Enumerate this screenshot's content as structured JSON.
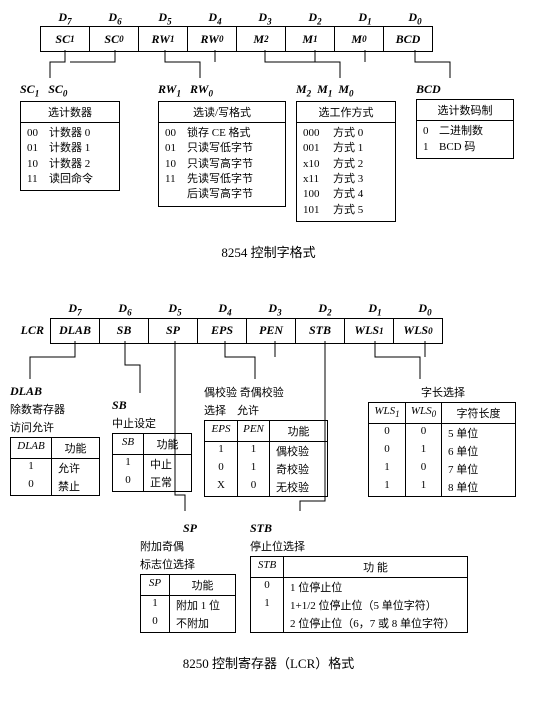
{
  "diagram1": {
    "bits": [
      "D",
      "D",
      "D",
      "D",
      "D",
      "D",
      "D",
      "D"
    ],
    "bit_subs": [
      "7",
      "6",
      "5",
      "4",
      "3",
      "2",
      "1",
      "0"
    ],
    "cells": [
      "SC",
      "SC",
      "RW",
      "RW",
      "M",
      "M",
      "M",
      "BCD"
    ],
    "cell_subs": [
      "1",
      "0",
      "1",
      "0",
      "2",
      "1",
      "0",
      ""
    ],
    "sc": {
      "hdr1": "SC",
      "hdr1s": "1",
      "hdr2": "SC",
      "hdr2s": "0",
      "title": "选计数器",
      "rows": [
        [
          "00",
          "计数器 0"
        ],
        [
          "01",
          "计数器 1"
        ],
        [
          "10",
          "计数器 2"
        ],
        [
          "11",
          "读回命令"
        ]
      ]
    },
    "rw": {
      "hdr1": "RW",
      "hdr1s": "1",
      "hdr2": "RW",
      "hdr2s": "0",
      "title": "选读/写格式",
      "rows": [
        [
          "00",
          "锁存 CE 格式"
        ],
        [
          "01",
          "只读写低字节"
        ],
        [
          "10",
          "只读写高字节"
        ],
        [
          "11",
          "先读写低字节"
        ],
        [
          "",
          "后读写高字节"
        ]
      ]
    },
    "mode": {
      "hdr1": "M",
      "hdr1s": "2",
      "hdr2": "M",
      "hdr2s": "1",
      "hdr3": "M",
      "hdr3s": "0",
      "title": "选工作方式",
      "rows": [
        [
          "000",
          "方式 0"
        ],
        [
          "001",
          "方式 1"
        ],
        [
          "x10",
          "方式 2"
        ],
        [
          "x11",
          "方式 3"
        ],
        [
          "100",
          "方式 4"
        ],
        [
          "101",
          "方式 5"
        ]
      ]
    },
    "bcd": {
      "hdr": "BCD",
      "title": "选计数码制",
      "rows": [
        [
          "0",
          "二进制数"
        ],
        [
          "1",
          "BCD 码"
        ]
      ]
    },
    "caption": "8254 控制字格式"
  },
  "diagram2": {
    "prefix": "LCR",
    "bits": [
      "D",
      "D",
      "D",
      "D",
      "D",
      "D",
      "D",
      "D"
    ],
    "bit_subs": [
      "7",
      "6",
      "5",
      "4",
      "3",
      "2",
      "1",
      "0"
    ],
    "cells": [
      "DLAB",
      "SB",
      "SP",
      "EPS",
      "PEN",
      "STB",
      "WLS",
      "WLS"
    ],
    "cell_subs": [
      "",
      "",
      "",
      "",
      "",
      "",
      "1",
      "0"
    ],
    "dlab": {
      "hdr": "DLAB",
      "title": "除数寄存器",
      "title2": "访问允许",
      "cols": [
        "DLAB",
        "功能"
      ],
      "rows": [
        [
          "1",
          "允许"
        ],
        [
          "0",
          "禁止"
        ]
      ]
    },
    "sb": {
      "hdr": "SB",
      "title": "中止设定",
      "cols": [
        "SB",
        "功能"
      ],
      "rows": [
        [
          "1",
          "中止"
        ],
        [
          "0",
          "正常"
        ]
      ]
    },
    "eps": {
      "title": "偶校验 奇偶校验",
      "title2": "选择    允许",
      "cols": [
        "EPS",
        "PEN",
        "功能"
      ],
      "rows": [
        [
          "1",
          "1",
          "偶校验"
        ],
        [
          "0",
          "1",
          "奇校验"
        ],
        [
          "X",
          "0",
          "无校验"
        ]
      ]
    },
    "wls": {
      "title": "字长选择",
      "cols": [
        "WLS",
        "WLS",
        "字符长度"
      ],
      "col_subs": [
        "1",
        "0",
        ""
      ],
      "rows": [
        [
          "0",
          "0",
          "5 单位"
        ],
        [
          "0",
          "1",
          "6 单位"
        ],
        [
          "1",
          "0",
          "7 单位"
        ],
        [
          "1",
          "1",
          "8 单位"
        ]
      ]
    },
    "sp": {
      "hdr": "SP",
      "title": "附加奇偶",
      "title2": "标志位选择",
      "cols": [
        "SP",
        "功能"
      ],
      "rows": [
        [
          "1",
          "附加 1 位"
        ],
        [
          "0",
          "不附加"
        ]
      ]
    },
    "stb": {
      "hdr": "STB",
      "title": "停止位选择",
      "cols": [
        "STB",
        "功 能"
      ],
      "rows": [
        [
          "0",
          "1 位停止位"
        ],
        [
          "1",
          "1+1/2 位停止位（5 单位字符）"
        ],
        [
          "",
          "2 位停止位（6，7 或 8 单位字符）"
        ]
      ]
    },
    "caption": "8250 控制寄存器（LCR）格式"
  }
}
